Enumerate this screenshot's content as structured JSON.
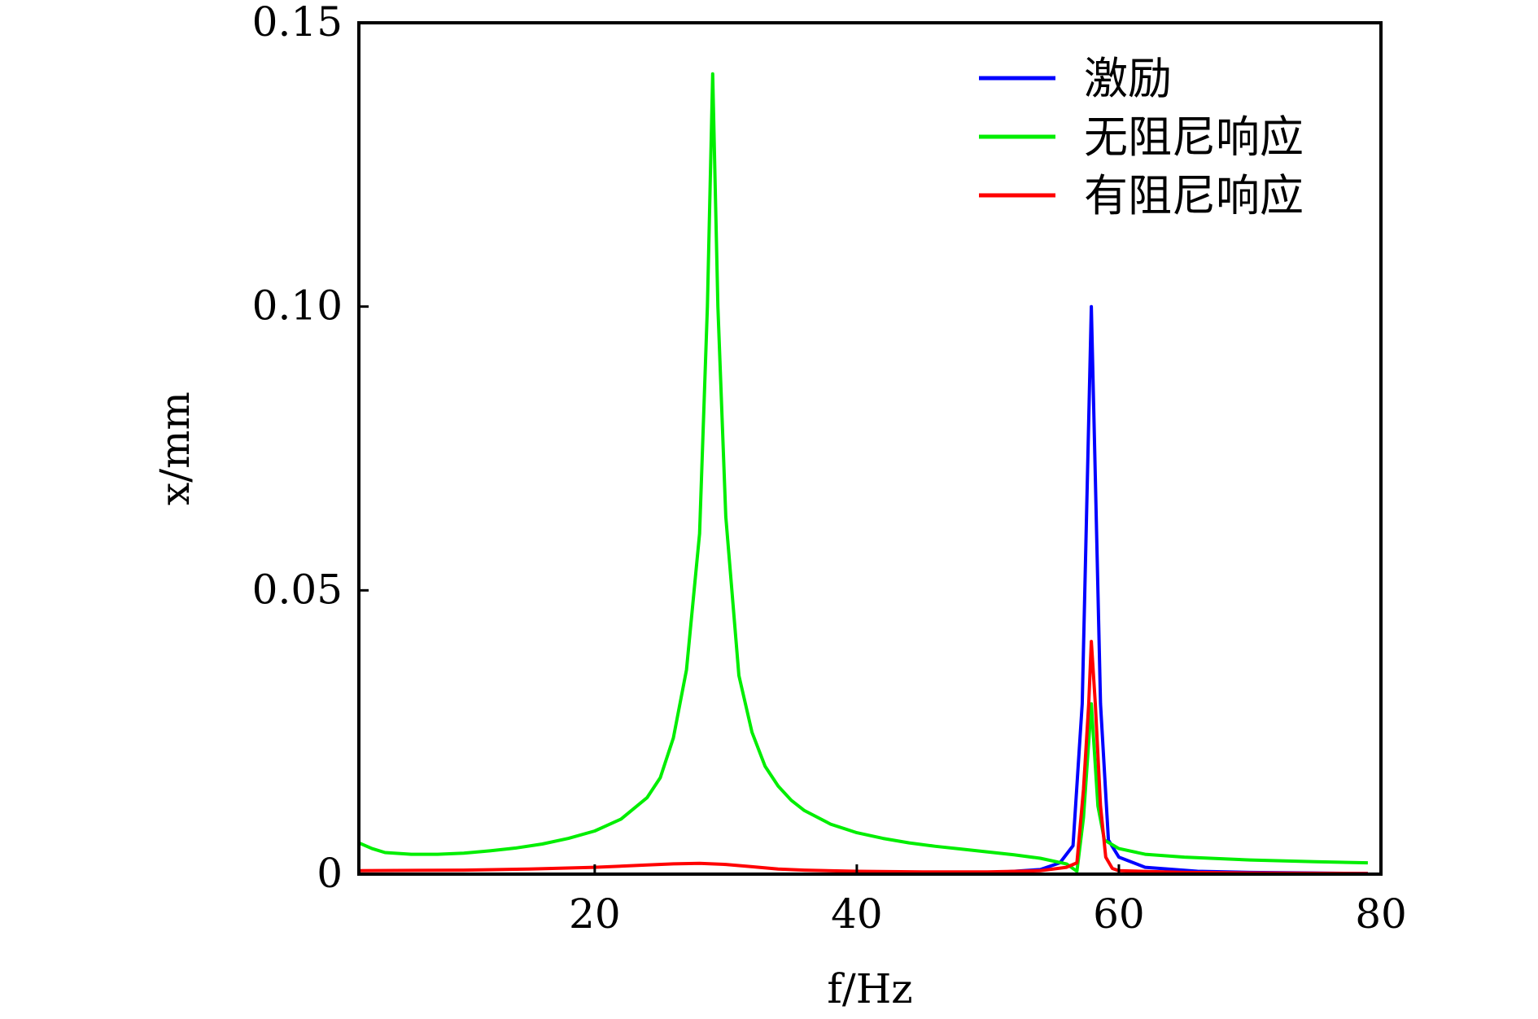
{
  "chart_data": {
    "type": "line",
    "xlabel": "f/Hz",
    "ylabel": "x/mm",
    "xlim": [
      2,
      80
    ],
    "ylim": [
      0,
      0.15
    ],
    "x_ticks": [
      20,
      40,
      60,
      80
    ],
    "y_ticks": [
      0,
      0.05,
      0.1,
      0.15
    ],
    "x_tick_labels": [
      "20",
      "40",
      "60",
      "80"
    ],
    "y_tick_labels": [
      "0",
      "0.05",
      "0.10",
      "0.15"
    ],
    "grid": false,
    "legend_position": "top-right",
    "series": [
      {
        "name": "激励",
        "color": "#0000ff",
        "points": [
          [
            2,
            0
          ],
          [
            20,
            0
          ],
          [
            40,
            0
          ],
          [
            50,
            0.0002
          ],
          [
            54,
            0.0008
          ],
          [
            55.5,
            0.002
          ],
          [
            56.5,
            0.005
          ],
          [
            57.2,
            0.03
          ],
          [
            57.6,
            0.07
          ],
          [
            57.9,
            0.1
          ],
          [
            58.2,
            0.07
          ],
          [
            58.6,
            0.03
          ],
          [
            59.2,
            0.006
          ],
          [
            60,
            0.003
          ],
          [
            62,
            0.0012
          ],
          [
            66,
            0.0005
          ],
          [
            70,
            0.0003
          ],
          [
            75,
            0.0002
          ],
          [
            79,
            0.0001
          ]
        ]
      },
      {
        "name": "无阻尼响应",
        "color": "#00ee00",
        "points": [
          [
            2,
            0.0055
          ],
          [
            3,
            0.0045
          ],
          [
            4,
            0.0038
          ],
          [
            6,
            0.0035
          ],
          [
            8,
            0.0035
          ],
          [
            10,
            0.0037
          ],
          [
            12,
            0.0041
          ],
          [
            14,
            0.0046
          ],
          [
            16,
            0.0053
          ],
          [
            18,
            0.0063
          ],
          [
            20,
            0.0076
          ],
          [
            22,
            0.0097
          ],
          [
            24,
            0.0135
          ],
          [
            25,
            0.017
          ],
          [
            26,
            0.024
          ],
          [
            27,
            0.036
          ],
          [
            28,
            0.06
          ],
          [
            28.6,
            0.1
          ],
          [
            29,
            0.141
          ],
          [
            29.4,
            0.1
          ],
          [
            30,
            0.063
          ],
          [
            31,
            0.035
          ],
          [
            32,
            0.025
          ],
          [
            33,
            0.019
          ],
          [
            34,
            0.0155
          ],
          [
            35,
            0.013
          ],
          [
            36,
            0.0112
          ],
          [
            38,
            0.0088
          ],
          [
            40,
            0.0073
          ],
          [
            42,
            0.0063
          ],
          [
            44,
            0.0055
          ],
          [
            46,
            0.0049
          ],
          [
            48,
            0.0044
          ],
          [
            50,
            0.0039
          ],
          [
            52,
            0.0034
          ],
          [
            54,
            0.0028
          ],
          [
            56,
            0.0018
          ],
          [
            56.8,
            0.0005
          ],
          [
            57.3,
            0.01
          ],
          [
            57.9,
            0.03
          ],
          [
            58.4,
            0.012
          ],
          [
            58.9,
            0.006
          ],
          [
            60,
            0.0045
          ],
          [
            62,
            0.0035
          ],
          [
            65,
            0.003
          ],
          [
            70,
            0.0025
          ],
          [
            75,
            0.0022
          ],
          [
            79,
            0.002
          ]
        ]
      },
      {
        "name": "有阻尼响应",
        "color": "#ff0000",
        "points": [
          [
            2,
            0.0006
          ],
          [
            10,
            0.0007
          ],
          [
            15,
            0.0009
          ],
          [
            20,
            0.0012
          ],
          [
            24,
            0.0016
          ],
          [
            26,
            0.0018
          ],
          [
            28,
            0.0019
          ],
          [
            30,
            0.0017
          ],
          [
            32,
            0.0013
          ],
          [
            34,
            0.0009
          ],
          [
            36,
            0.0007
          ],
          [
            40,
            0.0005
          ],
          [
            45,
            0.0004
          ],
          [
            50,
            0.0004
          ],
          [
            54,
            0.0006
          ],
          [
            56,
            0.0012
          ],
          [
            56.8,
            0.002
          ],
          [
            57.3,
            0.015
          ],
          [
            57.7,
            0.03
          ],
          [
            57.9,
            0.041
          ],
          [
            58.2,
            0.03
          ],
          [
            58.6,
            0.012
          ],
          [
            59.0,
            0.003
          ],
          [
            59.5,
            0.001
          ],
          [
            60,
            0.0006
          ],
          [
            65,
            0.0003
          ],
          [
            70,
            0.0002
          ],
          [
            79,
            0.0001
          ]
        ]
      }
    ]
  }
}
